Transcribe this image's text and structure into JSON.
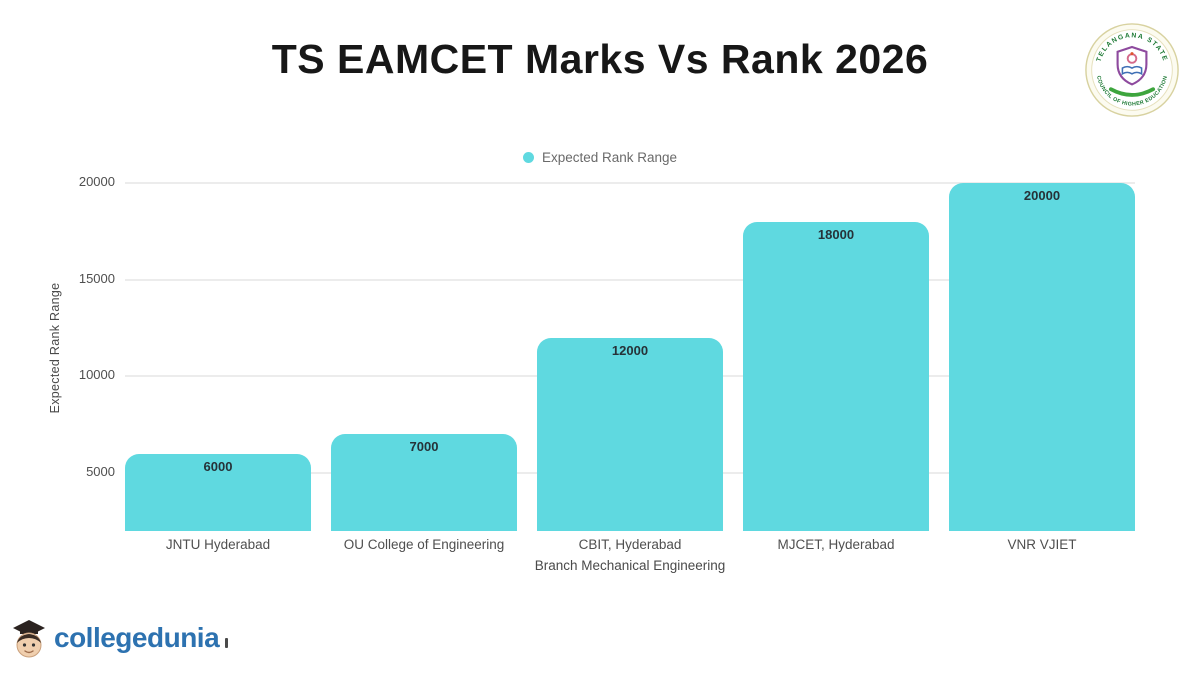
{
  "title": "TS EAMCET Marks Vs Rank 2026",
  "legend": {
    "label": "Expected Rank Range"
  },
  "chart_data": {
    "type": "bar",
    "title": "TS EAMCET Marks Vs Rank 2026",
    "categories": [
      "JNTU Hyderabad",
      "OU College of Engineering",
      "CBIT, Hyderabad",
      "MJCET, Hyderabad",
      "VNR VJIET"
    ],
    "values": [
      6000,
      7000,
      12000,
      18000,
      20000
    ],
    "xlabel": "Branch Mechanical Engineering",
    "ylabel": "Expected Rank Range",
    "y_ticks": [
      5000,
      10000,
      15000,
      20000
    ],
    "ylim": [
      2000,
      20000
    ],
    "grid": true,
    "legend_position": "top",
    "legend_entries": [
      "Expected Rank Range"
    ],
    "bar_color": "#5FD9E0"
  },
  "branding": {
    "footer_logo_text": "collegedunia",
    "seal_top_text": "TELANGANA STATE",
    "seal_bottom_text": "COUNCIL OF HIGHER EDUCATION"
  },
  "colors": {
    "bar": "#5FD9E0",
    "title_text": "#171717",
    "axis_text": "#4f4f4f",
    "gridline": "#ececec",
    "logo_blue": "#2d72b0",
    "seal_green": "#1e7a35",
    "seal_purple": "#8e4a9e"
  }
}
